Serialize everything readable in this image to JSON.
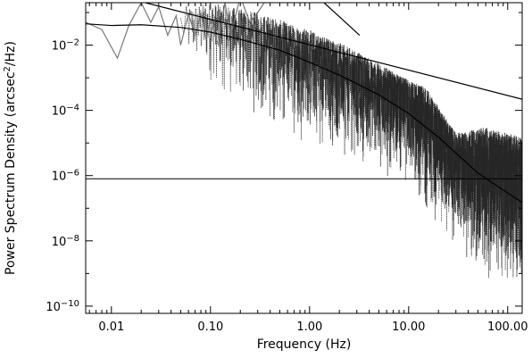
{
  "chart_data": {
    "type": "line",
    "title": "",
    "xlabel": "Frequency (Hz)",
    "ylabel_parts": {
      "before": "Power Spectrum Density (arcsec",
      "sup": "2",
      "after": "/Hz)"
    },
    "x_scale": "log",
    "y_scale": "log",
    "xlim": [
      0.0055,
      140
    ],
    "ylim": [
      6e-11,
      0.2
    ],
    "grid": false,
    "legend": "none",
    "x_ticks": [
      {
        "value": 0.01,
        "label": "0.01"
      },
      {
        "value": 0.1,
        "label": "0.10"
      },
      {
        "value": 1,
        "label": "1.00"
      },
      {
        "value": 10,
        "label": "10.00"
      },
      {
        "value": 100,
        "label": "100.00"
      }
    ],
    "y_ticks": [
      {
        "value": 1e-10,
        "base": "10",
        "exp": "−10"
      },
      {
        "value": 1e-08,
        "base": "10",
        "exp": "−8"
      },
      {
        "value": 1e-06,
        "base": "10",
        "exp": "−6"
      },
      {
        "value": 0.0001,
        "base": "10",
        "exp": "−4"
      },
      {
        "value": 0.01,
        "base": "10",
        "exp": "−2"
      }
    ],
    "series": [
      {
        "role": "measured PSD (dotted, noisy)",
        "color": "#000000",
        "style": "noisy",
        "envelope": {
          "x": [
            0.05,
            0.1,
            0.3,
            1,
            2,
            4,
            8,
            15,
            30,
            60,
            140
          ],
          "upper": [
            0.15,
            0.2,
            0.1,
            0.03,
            0.012,
            0.004,
            0.0012,
            0.0005,
            2e-05,
            3e-05,
            1.5e-05
          ],
          "lower": [
            0.0005,
            0.0003,
            2e-05,
            5e-06,
            2e-06,
            1e-06,
            5e-07,
            3e-08,
            3e-09,
            3e-10,
            1e-10
          ]
        }
      },
      {
        "role": "low-frequency PSD (gray)",
        "color": "#777777",
        "style": "line",
        "x": [
          0.0055,
          0.008,
          0.0115,
          0.015,
          0.02,
          0.025,
          0.03,
          0.037,
          0.045,
          0.05,
          0.06,
          0.07,
          0.08,
          0.09,
          0.1,
          0.12,
          0.14,
          0.16,
          0.2,
          0.25,
          0.3,
          0.38
        ],
        "y": [
          0.05,
          0.03,
          0.004,
          0.04,
          0.2,
          0.05,
          0.15,
          0.02,
          0.08,
          0.01,
          0.09,
          0.02,
          0.1,
          0.015,
          0.06,
          0.01,
          0.2,
          0.02,
          0.3,
          0.05,
          0.1,
          0.3
        ]
      },
      {
        "role": "broken power-law fit",
        "color": "#000000",
        "style": "line",
        "x": [
          0.0055,
          0.01,
          0.02,
          0.05,
          0.1,
          0.2,
          0.5,
          1,
          2,
          5,
          10,
          20,
          50,
          140
        ],
        "y": [
          0.045,
          0.04,
          0.042,
          0.035,
          0.025,
          0.015,
          0.007,
          0.003,
          0.0012,
          0.0003,
          8e-05,
          1.5e-05,
          1.2e-06,
          1.5e-07
        ]
      },
      {
        "role": "steep power law (fit component)",
        "color": "#000000",
        "style": "line",
        "x": [
          1.4,
          3.2
        ],
        "y": [
          0.2,
          0.02
        ]
      },
      {
        "role": "shallow power law (fit component)",
        "color": "#000000",
        "style": "line",
        "x": [
          0.022,
          140
        ],
        "y": [
          0.2,
          0.00022
        ]
      },
      {
        "role": "white noise floor",
        "color": "#000000",
        "style": "hline",
        "y": 8e-07
      }
    ]
  }
}
